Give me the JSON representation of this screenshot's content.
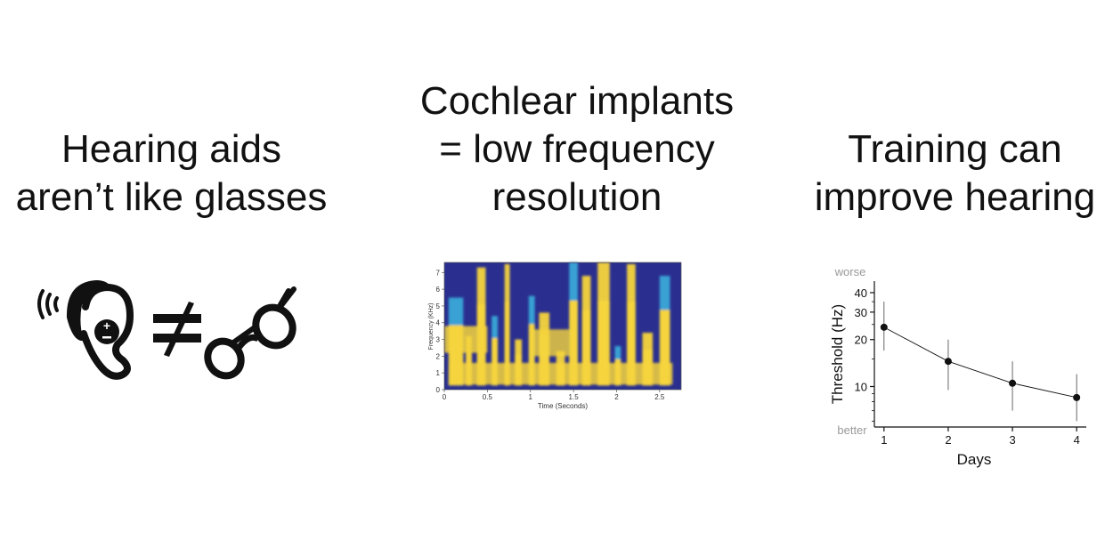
{
  "panels": [
    {
      "heading_lines": [
        "Hearing aids",
        "aren’t like glasses"
      ],
      "icons": [
        "hearing-aid-ear-icon",
        "not-equal-icon",
        "eyeglasses-icon"
      ]
    },
    {
      "heading_lines": [
        "Cochlear implants",
        "= low frequency",
        "resolution"
      ]
    },
    {
      "heading_lines": [
        "Training can",
        "improve hearing"
      ]
    }
  ],
  "spectrogram": {
    "type": "heatmap",
    "xlabel": "Time (Seconds)",
    "ylabel": "Frequency (KHz)",
    "xticks": [
      "0",
      "0.5",
      "1",
      "1.5",
      "2",
      "2.5"
    ],
    "yticks": [
      "0",
      "1",
      "2",
      "3",
      "4",
      "5",
      "6",
      "7"
    ],
    "colors": {
      "background": "#2a2f8f",
      "energy": "#f5d43c",
      "mid": "#3aa8d8"
    }
  },
  "chart_data": {
    "type": "line",
    "x": [
      1,
      2,
      3,
      4
    ],
    "y": [
      24,
      14.5,
      10.5,
      8.5
    ],
    "y_err_low": [
      17,
      9.5,
      7,
      6
    ],
    "y_err_high": [
      35,
      20,
      14.5,
      12
    ],
    "xlabel": "Days",
    "ylabel": "Threshold (Hz)",
    "yscale": "log",
    "xticks": [
      "1",
      "2",
      "3",
      "4"
    ],
    "yticks": [
      {
        "value": 10,
        "label": "10"
      },
      {
        "value": 20,
        "label": "20"
      },
      {
        "value": 30,
        "label": "30"
      },
      {
        "value": 40,
        "label": "40"
      }
    ],
    "ylim": [
      5.5,
      45
    ],
    "xlim": [
      0.85,
      4.15
    ],
    "annotations": {
      "top": "worse",
      "bottom": "better"
    },
    "grid": false
  }
}
